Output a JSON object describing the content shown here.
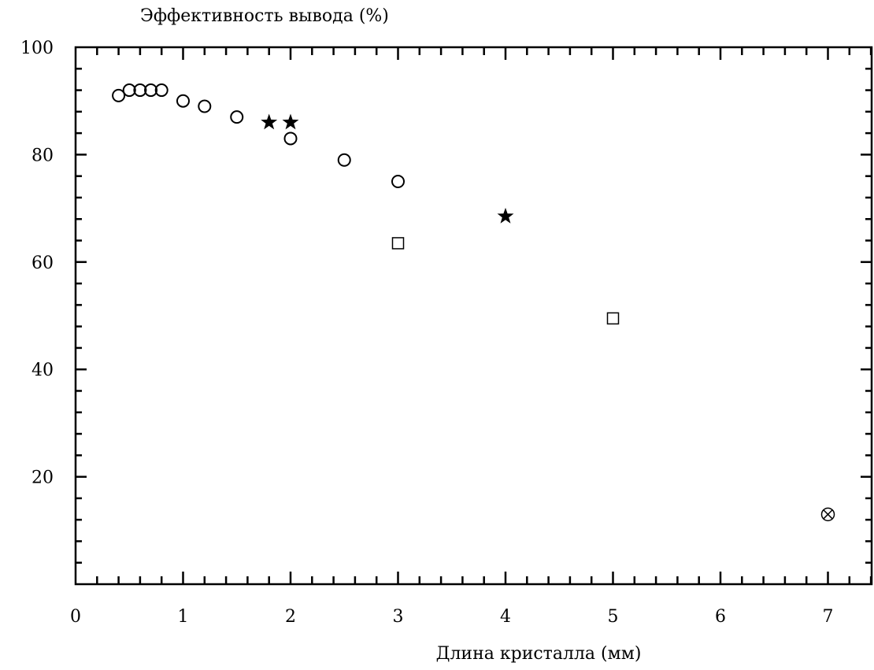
{
  "chart_data": {
    "type": "scatter",
    "title": "",
    "ylabel": "Эффективность вывода (%)",
    "xlabel": "Длина кристалла (мм)",
    "xlim": [
      0,
      7.45
    ],
    "ylim": [
      0,
      100
    ],
    "x_ticks": [
      0,
      1,
      2,
      3,
      4,
      5,
      6,
      7
    ],
    "x_tick_labels": [
      "0",
      "1",
      "2",
      "3",
      "4",
      "5",
      "6",
      "7"
    ],
    "x_minor_step": 0.2,
    "y_ticks": [
      20,
      40,
      60,
      80,
      100
    ],
    "y_tick_labels": [
      "20",
      "40",
      "60",
      "80",
      "100"
    ],
    "y_minor_step": 4,
    "grid": false,
    "frame": "full box, ticks on all four sides",
    "series": [
      {
        "marker": "circle",
        "points": [
          [
            0.4,
            91
          ],
          [
            0.5,
            92
          ],
          [
            0.6,
            92
          ],
          [
            0.7,
            92
          ],
          [
            0.8,
            92
          ],
          [
            1.0,
            90
          ],
          [
            1.2,
            89
          ],
          [
            1.5,
            87
          ],
          [
            2.0,
            83
          ],
          [
            2.5,
            79
          ],
          [
            3.0,
            75
          ]
        ]
      },
      {
        "marker": "star",
        "points": [
          [
            1.8,
            86
          ],
          [
            2.0,
            86
          ],
          [
            4.0,
            68.5
          ]
        ]
      },
      {
        "marker": "square",
        "points": [
          [
            3.0,
            63.5
          ],
          [
            5.0,
            49.5
          ]
        ]
      },
      {
        "marker": "circle-times",
        "points": [
          [
            7.0,
            13
          ]
        ]
      }
    ]
  }
}
